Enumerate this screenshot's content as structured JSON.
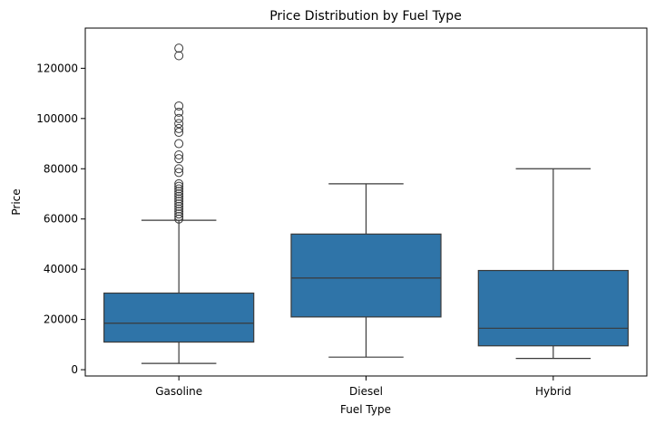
{
  "chart_data": {
    "type": "boxplot",
    "title": "Price Distribution by Fuel Type",
    "xlabel": "Fuel Type",
    "ylabel": "Price",
    "ylim": [
      -2500,
      136000
    ],
    "yticks": [
      0,
      20000,
      40000,
      60000,
      80000,
      100000,
      120000
    ],
    "ytick_labels": [
      "0",
      "20000",
      "40000",
      "60000",
      "80000",
      "100000",
      "120000"
    ],
    "grid": false,
    "box_color": "#2f74a8",
    "line_color": "#3a3a3a",
    "categories": [
      "Gasoline",
      "Diesel",
      "Hybrid"
    ],
    "boxes": [
      {
        "category": "Gasoline",
        "whisker_low": 2500,
        "q1": 11000,
        "median": 18500,
        "q3": 30500,
        "whisker_high": 59500,
        "outliers": [
          60000,
          61000,
          62000,
          63000,
          64000,
          65000,
          66000,
          67000,
          68000,
          69000,
          70000,
          71000,
          72000,
          73000,
          74000,
          78500,
          80000,
          84000,
          85500,
          90000,
          94500,
          96000,
          98000,
          100000,
          102500,
          105000,
          125000,
          128000
        ]
      },
      {
        "category": "Diesel",
        "whisker_low": 5000,
        "q1": 21000,
        "median": 36500,
        "q3": 54000,
        "whisker_high": 74000,
        "outliers": []
      },
      {
        "category": "Hybrid",
        "whisker_low": 4500,
        "q1": 9500,
        "median": 16500,
        "q3": 39500,
        "whisker_high": 80000,
        "outliers": []
      }
    ]
  }
}
